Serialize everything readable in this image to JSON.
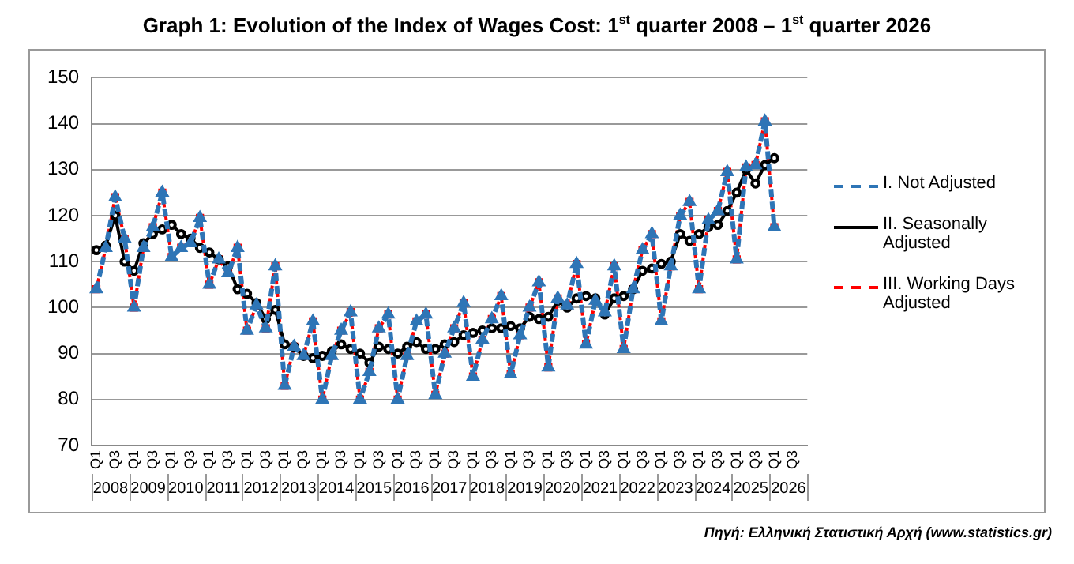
{
  "chart_data": {
    "type": "line",
    "title": "Graph 1: Evolution of the Index of Wages Cost: 1$^{st}$ quarter 2008 – 1$^{st}$ quarter 2026",
    "categories": [
      "Q1",
      null,
      "Q3",
      null,
      "Q1",
      null,
      "Q3",
      null,
      "Q1",
      null,
      "Q3",
      null,
      "Q1",
      null,
      "Q3",
      null,
      "Q1",
      null,
      "Q3",
      null,
      "Q1",
      null,
      "Q3",
      null,
      "Q1",
      null,
      "Q3",
      null,
      "Q1",
      null,
      "Q3",
      null,
      "Q1",
      null,
      "Q3",
      null,
      "Q1",
      null,
      "Q3",
      null,
      "Q1",
      null,
      "Q3",
      null,
      "Q1",
      null,
      "Q3",
      null,
      "Q1",
      null,
      "Q3",
      null,
      "Q1",
      null,
      "Q3",
      null,
      "Q1",
      null,
      "Q3",
      null,
      "Q1",
      null,
      "Q3",
      null,
      "Q1",
      null,
      "Q3",
      null,
      "Q1",
      null,
      "Q3",
      null,
      "Q1",
      null,
      "Q3",
      null
    ],
    "series": [
      {
        "name": "I. Not Adjusted",
        "color": "#2e75b6",
        "marker": "triangle",
        "line_style": "dashed",
        "values": [
          104,
          113,
          124,
          115,
          100,
          113,
          117.5,
          125,
          111,
          113,
          114,
          119.5,
          105,
          110.5,
          107.5,
          113,
          95,
          100.5,
          95.5,
          109,
          83,
          91.5,
          89.5,
          97,
          80,
          89.5,
          95,
          99,
          80,
          86,
          95.5,
          98.5,
          80,
          89.5,
          97,
          98.5,
          81,
          90,
          95.5,
          101,
          85,
          93,
          97.5,
          102.5,
          85.5,
          94,
          100,
          105.5,
          87,
          102,
          100.5,
          109.5,
          92,
          101.5,
          99,
          109,
          91,
          104,
          112.5,
          116,
          97,
          109,
          120,
          123,
          104,
          119,
          121,
          129.5,
          110.5,
          130.5,
          131,
          140.5,
          117.5,
          null,
          null,
          null
        ]
      },
      {
        "name": "II. Seasonally Adjusted",
        "color": "#000000",
        "marker": "circle",
        "line_style": "solid",
        "values": [
          112.5,
          113.5,
          120,
          110,
          108,
          114,
          116,
          117,
          118,
          116,
          115,
          113,
          112,
          110.5,
          109,
          104,
          103,
          101,
          97.5,
          99.5,
          92,
          91.5,
          89.5,
          89,
          89.5,
          90.5,
          92,
          91,
          90,
          88,
          91.5,
          91,
          90,
          91.5,
          92.5,
          91,
          91,
          92,
          92.5,
          94,
          94.5,
          95,
          95.5,
          95.5,
          96,
          95.5,
          98,
          97.5,
          98,
          101.5,
          100,
          102,
          102.5,
          102,
          98.5,
          102,
          102.5,
          104,
          108,
          108.5,
          109.5,
          110,
          116,
          114.5,
          116,
          117.5,
          118,
          121,
          125,
          130,
          127,
          131,
          132.5,
          null,
          null,
          null
        ]
      },
      {
        "name": "III. Working Days Adjusted",
        "color": "#ff0000",
        "marker": "square",
        "line_style": "dashed",
        "values": [
          104,
          113,
          124,
          115,
          100,
          113,
          117.5,
          125,
          111,
          113,
          114,
          119.5,
          105,
          110.5,
          107.5,
          113,
          95,
          100.5,
          95.5,
          109,
          83,
          91.5,
          89.5,
          97,
          80,
          89.5,
          95,
          99,
          80,
          86,
          95.5,
          98.5,
          80,
          89.5,
          97,
          98.5,
          81,
          90,
          95.5,
          101,
          85,
          93,
          97.5,
          102.5,
          85.5,
          94,
          100,
          105.5,
          87,
          102,
          100.5,
          109.5,
          92,
          101.5,
          99,
          109,
          91,
          104,
          112.5,
          116,
          97,
          109,
          120,
          123,
          104,
          119,
          121,
          129.5,
          110.5,
          130.5,
          131,
          140.5,
          117.5,
          null,
          null,
          null
        ]
      }
    ],
    "ylim": [
      70,
      150
    ],
    "yticks": [
      70,
      80,
      90,
      100,
      110,
      120,
      130,
      140,
      150
    ],
    "grid": "y",
    "legend": "right",
    "annotations": [
      "Πηγή: Ελληνική Στατιστική Αρχή (www.statistics.gr)",
      "2008",
      "2009",
      "2010",
      "2011",
      "2012",
      "2013",
      "2014",
      "2015",
      "2016",
      "2017",
      "2018",
      "2019",
      "2020",
      "2021",
      "2022",
      "2023",
      "2024",
      "2025",
      "2026"
    ]
  }
}
